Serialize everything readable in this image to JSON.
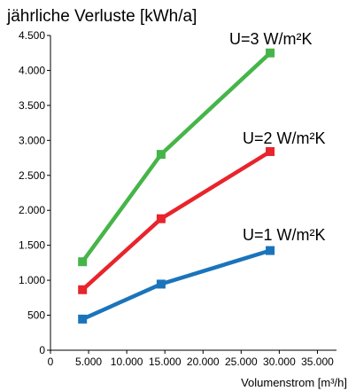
{
  "chart_data": {
    "type": "line",
    "ylabel": "jährliche Verluste [kWh/a]",
    "xlabel": "Volumenstrom [m³/h]",
    "xlim": [
      0,
      37500
    ],
    "ylim": [
      0,
      4500
    ],
    "x_ticks": [
      0,
      5000,
      10000,
      15000,
      20000,
      25000,
      30000,
      35000
    ],
    "x_tick_labels": [
      "0",
      "5.000",
      "10.000",
      "15.000",
      "20.000",
      "25.000",
      "30.000",
      "35.000"
    ],
    "y_ticks": [
      0,
      500,
      1000,
      1500,
      2000,
      2500,
      3000,
      3500,
      4000,
      4500
    ],
    "y_tick_labels": [
      "0",
      "500",
      "1.000",
      "1.500",
      "2.000",
      "2.500",
      "3.000",
      "3.500",
      "4.000",
      "4.500"
    ],
    "grid": false,
    "legend": "labels at line ends",
    "series": [
      {
        "name": "U=3 W/m²K",
        "color": "#46b549",
        "x": [
          4200,
          14500,
          28800
        ],
        "y": [
          1265,
          2800,
          4250
        ]
      },
      {
        "name": "U=2 W/m²K",
        "color": "#e8242c",
        "x": [
          4200,
          14500,
          28800
        ],
        "y": [
          865,
          1880,
          2840
        ]
      },
      {
        "name": "U=1 W/m²K",
        "color": "#1a74bb",
        "x": [
          4200,
          14500,
          28800
        ],
        "y": [
          445,
          945,
          1425
        ]
      }
    ]
  }
}
